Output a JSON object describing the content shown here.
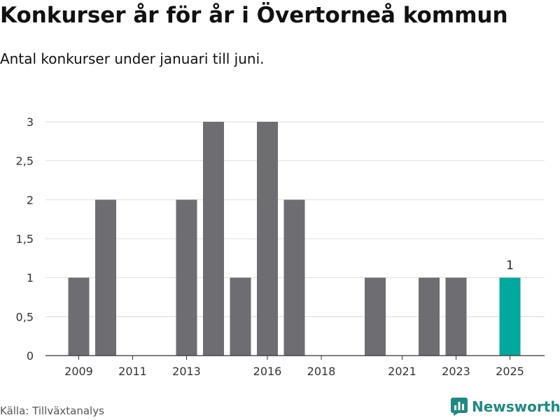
{
  "header": {
    "title": "Konkurser år för år i Övertorneå kommun",
    "subtitle": "Antal konkurser under januari till juni."
  },
  "footer": {
    "source": "Källa: Tillväxtanalys",
    "brand": "Newsworthy",
    "brand_icon": "newsworthy-logo-icon"
  },
  "colors": {
    "bar": "#6e6d72",
    "highlight": "#00a99d",
    "grid": "#dddddd",
    "axis": "#333333",
    "brand": "#1f8a82"
  },
  "chart_data": {
    "type": "bar",
    "categories": [
      "2009",
      "2010",
      "2011",
      "2012",
      "2013",
      "2014",
      "2015",
      "2016",
      "2017",
      "2018",
      "2019",
      "2020",
      "2021",
      "2022",
      "2023",
      "2024",
      "2025"
    ],
    "values": [
      1,
      2,
      0,
      0,
      2,
      3,
      1,
      3,
      2,
      0,
      0,
      1,
      0,
      1,
      1,
      0,
      1
    ],
    "highlight_category": "2025",
    "data_labels": [
      {
        "category": "2025",
        "text": "1"
      }
    ],
    "x_tick_labels": [
      "2009",
      "2011",
      "2013",
      "2016",
      "2018",
      "2021",
      "2023",
      "2025"
    ],
    "y_ticks": [
      0,
      0.5,
      1,
      1.5,
      2,
      2.5,
      3
    ],
    "y_tick_labels": [
      "0",
      "0,5",
      "1",
      "1,5",
      "2",
      "2,5",
      "3"
    ],
    "ylim": [
      0,
      3
    ],
    "grid": true,
    "legend": "none"
  }
}
